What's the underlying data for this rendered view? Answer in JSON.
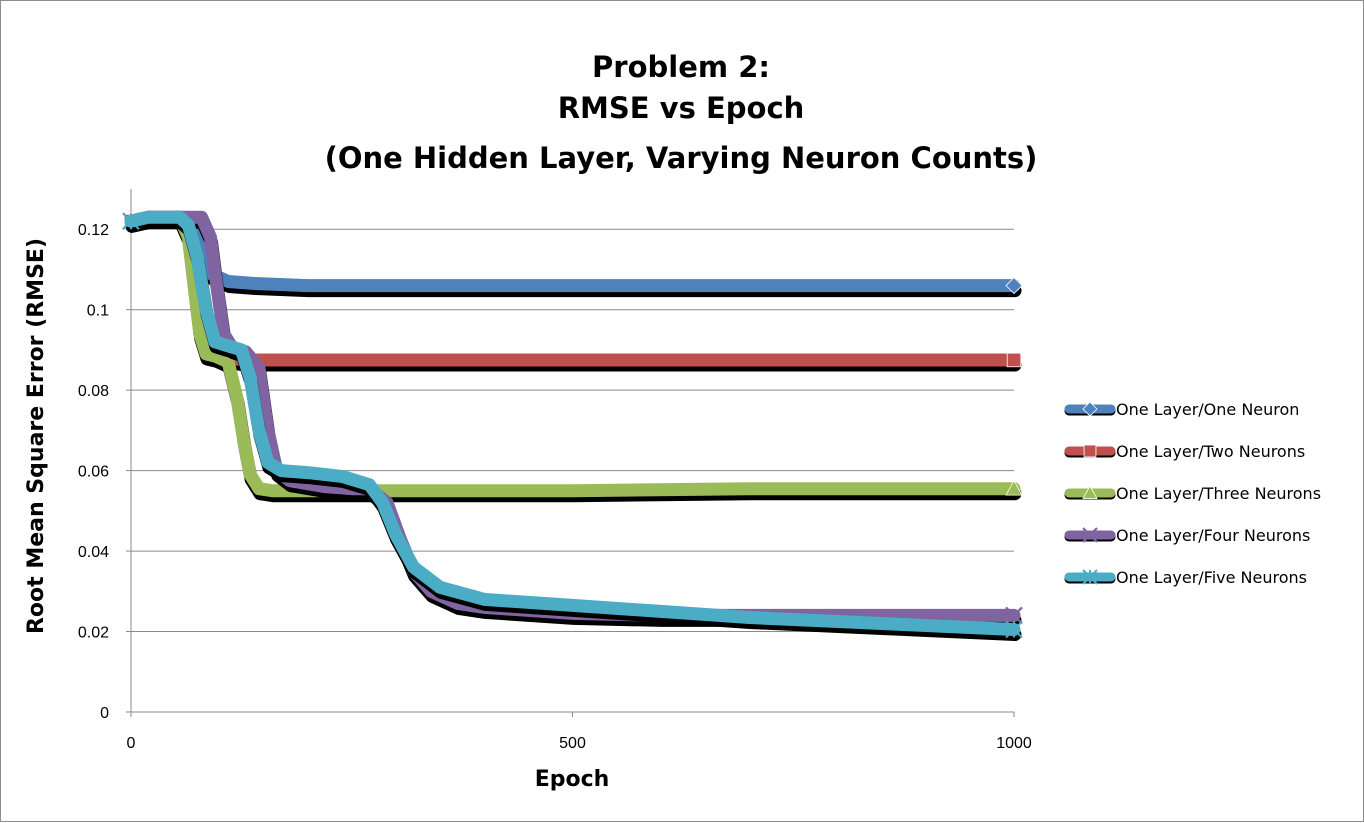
{
  "chart_data": {
    "type": "line",
    "title_lines": [
      "Problem 2:",
      "RMSE vs Epoch",
      "(One Hidden Layer, Varying Neuron Counts)"
    ],
    "xlabel": "Epoch",
    "ylabel": "Root Mean Square Error (RMSE)",
    "xlim": [
      0,
      1000
    ],
    "ylim": [
      0,
      0.13
    ],
    "x_ticks": [
      0,
      500,
      1000
    ],
    "x_tick_labels": [
      "0",
      "500",
      "1000"
    ],
    "y_ticks": [
      0,
      0.02,
      0.04,
      0.06,
      0.08,
      0.1,
      0.12
    ],
    "y_tick_labels": [
      "0",
      "0.02",
      "0.04",
      "0.06",
      "0.08",
      "0.1",
      "0.12"
    ],
    "grid": "horizontal",
    "legend_position": "right",
    "series": [
      {
        "name": "One Layer/One Neuron",
        "color": "#4f81bd",
        "marker": "diamond",
        "x": [
          0,
          20,
          40,
          55,
          70,
          80,
          90,
          110,
          140,
          200,
          300,
          500,
          700,
          900,
          1000
        ],
        "y": [
          0.122,
          0.123,
          0.123,
          0.123,
          0.121,
          0.115,
          0.109,
          0.107,
          0.1065,
          0.106,
          0.106,
          0.106,
          0.106,
          0.106,
          0.106
        ]
      },
      {
        "name": "One Layer/Two Neurons",
        "color": "#c0504d",
        "marker": "square",
        "x": [
          0,
          20,
          40,
          55,
          65,
          72,
          78,
          85,
          95,
          110,
          130,
          160,
          200,
          300,
          500,
          700,
          1000
        ],
        "y": [
          0.122,
          0.123,
          0.123,
          0.123,
          0.118,
          0.105,
          0.094,
          0.089,
          0.0885,
          0.088,
          0.0875,
          0.0875,
          0.0875,
          0.0875,
          0.0875,
          0.0875,
          0.0875
        ]
      },
      {
        "name": "One Layer/Three Neurons",
        "color": "#9bbb59",
        "marker": "triangle",
        "x": [
          0,
          20,
          40,
          55,
          65,
          72,
          78,
          85,
          95,
          110,
          120,
          128,
          135,
          145,
          160,
          200,
          300,
          500,
          700,
          1000
        ],
        "y": [
          0.122,
          0.123,
          0.123,
          0.123,
          0.118,
          0.105,
          0.094,
          0.089,
          0.0885,
          0.087,
          0.078,
          0.067,
          0.059,
          0.0555,
          0.055,
          0.055,
          0.055,
          0.055,
          0.0555,
          0.0555
        ]
      },
      {
        "name": "One Layer/Four Neurons",
        "color": "#8064a2",
        "marker": "x",
        "x": [
          0,
          20,
          40,
          60,
          80,
          90,
          97,
          105,
          115,
          130,
          145,
          155,
          165,
          180,
          220,
          250,
          270,
          290,
          305,
          320,
          340,
          370,
          400,
          500,
          600,
          700,
          800,
          900,
          1000
        ],
        "y": [
          0.122,
          0.123,
          0.123,
          0.123,
          0.123,
          0.118,
          0.106,
          0.094,
          0.0905,
          0.0895,
          0.0855,
          0.07,
          0.06,
          0.0575,
          0.056,
          0.0555,
          0.0555,
          0.052,
          0.043,
          0.035,
          0.03,
          0.027,
          0.026,
          0.0245,
          0.024,
          0.024,
          0.024,
          0.024,
          0.024
        ]
      },
      {
        "name": "One Layer/Five Neurons",
        "color": "#4bacc6",
        "marker": "asterisk",
        "x": [
          0,
          20,
          40,
          55,
          65,
          75,
          85,
          95,
          110,
          125,
          135,
          145,
          155,
          170,
          200,
          240,
          270,
          285,
          300,
          320,
          350,
          400,
          500,
          600,
          700,
          800,
          900,
          1000
        ],
        "y": [
          0.122,
          0.123,
          0.123,
          0.123,
          0.121,
          0.113,
          0.1,
          0.092,
          0.091,
          0.09,
          0.083,
          0.07,
          0.062,
          0.06,
          0.0595,
          0.0585,
          0.0565,
          0.052,
          0.044,
          0.036,
          0.031,
          0.028,
          0.0265,
          0.025,
          0.0235,
          0.0225,
          0.0215,
          0.0205
        ]
      }
    ]
  }
}
